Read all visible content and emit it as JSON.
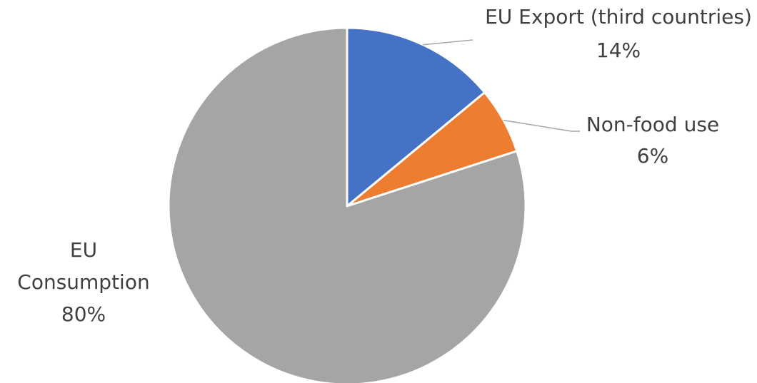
{
  "chart_data": {
    "type": "pie",
    "title": "",
    "start_angle_deg": 0,
    "direction": "clockwise",
    "legend": "none",
    "slices": [
      {
        "name": "EU Export (third countries)",
        "value": 14,
        "label_lines": [
          "EU Export (third countries)"
        ],
        "percent_label": "14%",
        "color": "#4472c4"
      },
      {
        "name": "Non-food use",
        "value": 6,
        "label_lines": [
          "Non-food use"
        ],
        "percent_label": "6%",
        "color": "#ed7d31"
      },
      {
        "name": "EU Consumption",
        "value": 80,
        "label_lines": [
          "EU",
          "Consumption"
        ],
        "percent_label": "80%",
        "color": "#a5a5a5"
      }
    ]
  }
}
